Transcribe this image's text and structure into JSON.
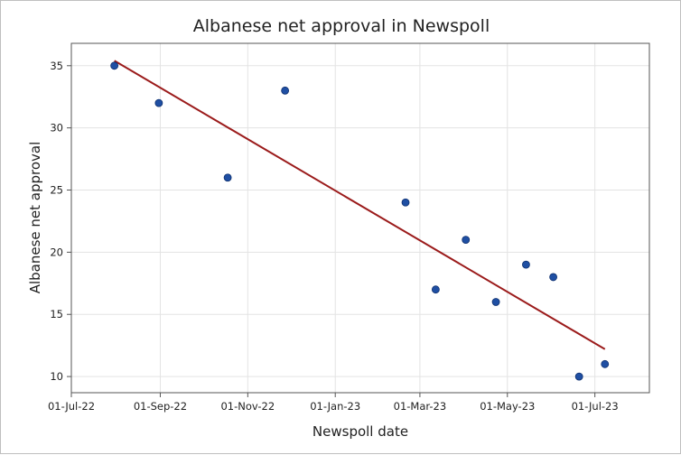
{
  "chart_data": {
    "type": "scatter",
    "title": "Albanese net approval in Newspoll",
    "xlabel": "Newspoll date",
    "ylabel": "Albanese net approval",
    "x_ticks": [
      "01-Jul-22",
      "01-Sep-22",
      "01-Nov-22",
      "01-Jan-23",
      "01-Mar-23",
      "01-May-23",
      "01-Jul-23"
    ],
    "y_ticks": [
      10,
      15,
      20,
      25,
      30,
      35
    ],
    "xlim": [
      "2022-07-01",
      "2023-08-08"
    ],
    "ylim": [
      8.7,
      36.8
    ],
    "grid": true,
    "legend": "none",
    "points": [
      {
        "x": "2022-07-31",
        "y": 35
      },
      {
        "x": "2022-08-31",
        "y": 32
      },
      {
        "x": "2022-10-18",
        "y": 26
      },
      {
        "x": "2022-11-27",
        "y": 33
      },
      {
        "x": "2023-02-19",
        "y": 24
      },
      {
        "x": "2023-03-12",
        "y": 17
      },
      {
        "x": "2023-04-02",
        "y": 21
      },
      {
        "x": "2023-04-23",
        "y": 16
      },
      {
        "x": "2023-05-14",
        "y": 19
      },
      {
        "x": "2023-06-02",
        "y": 18
      },
      {
        "x": "2023-06-20",
        "y": 10
      },
      {
        "x": "2023-07-08",
        "y": 11
      }
    ],
    "trendline": [
      {
        "x": "2022-07-31",
        "y": 35.4
      },
      {
        "x": "2023-07-08",
        "y": 12.2
      }
    ],
    "colors": {
      "point": "#1f4fa3",
      "point_edge": "#0d2f6e",
      "trendline": "#9b1b1b",
      "grid": "#e3e3e3",
      "axis": "#555555"
    }
  }
}
